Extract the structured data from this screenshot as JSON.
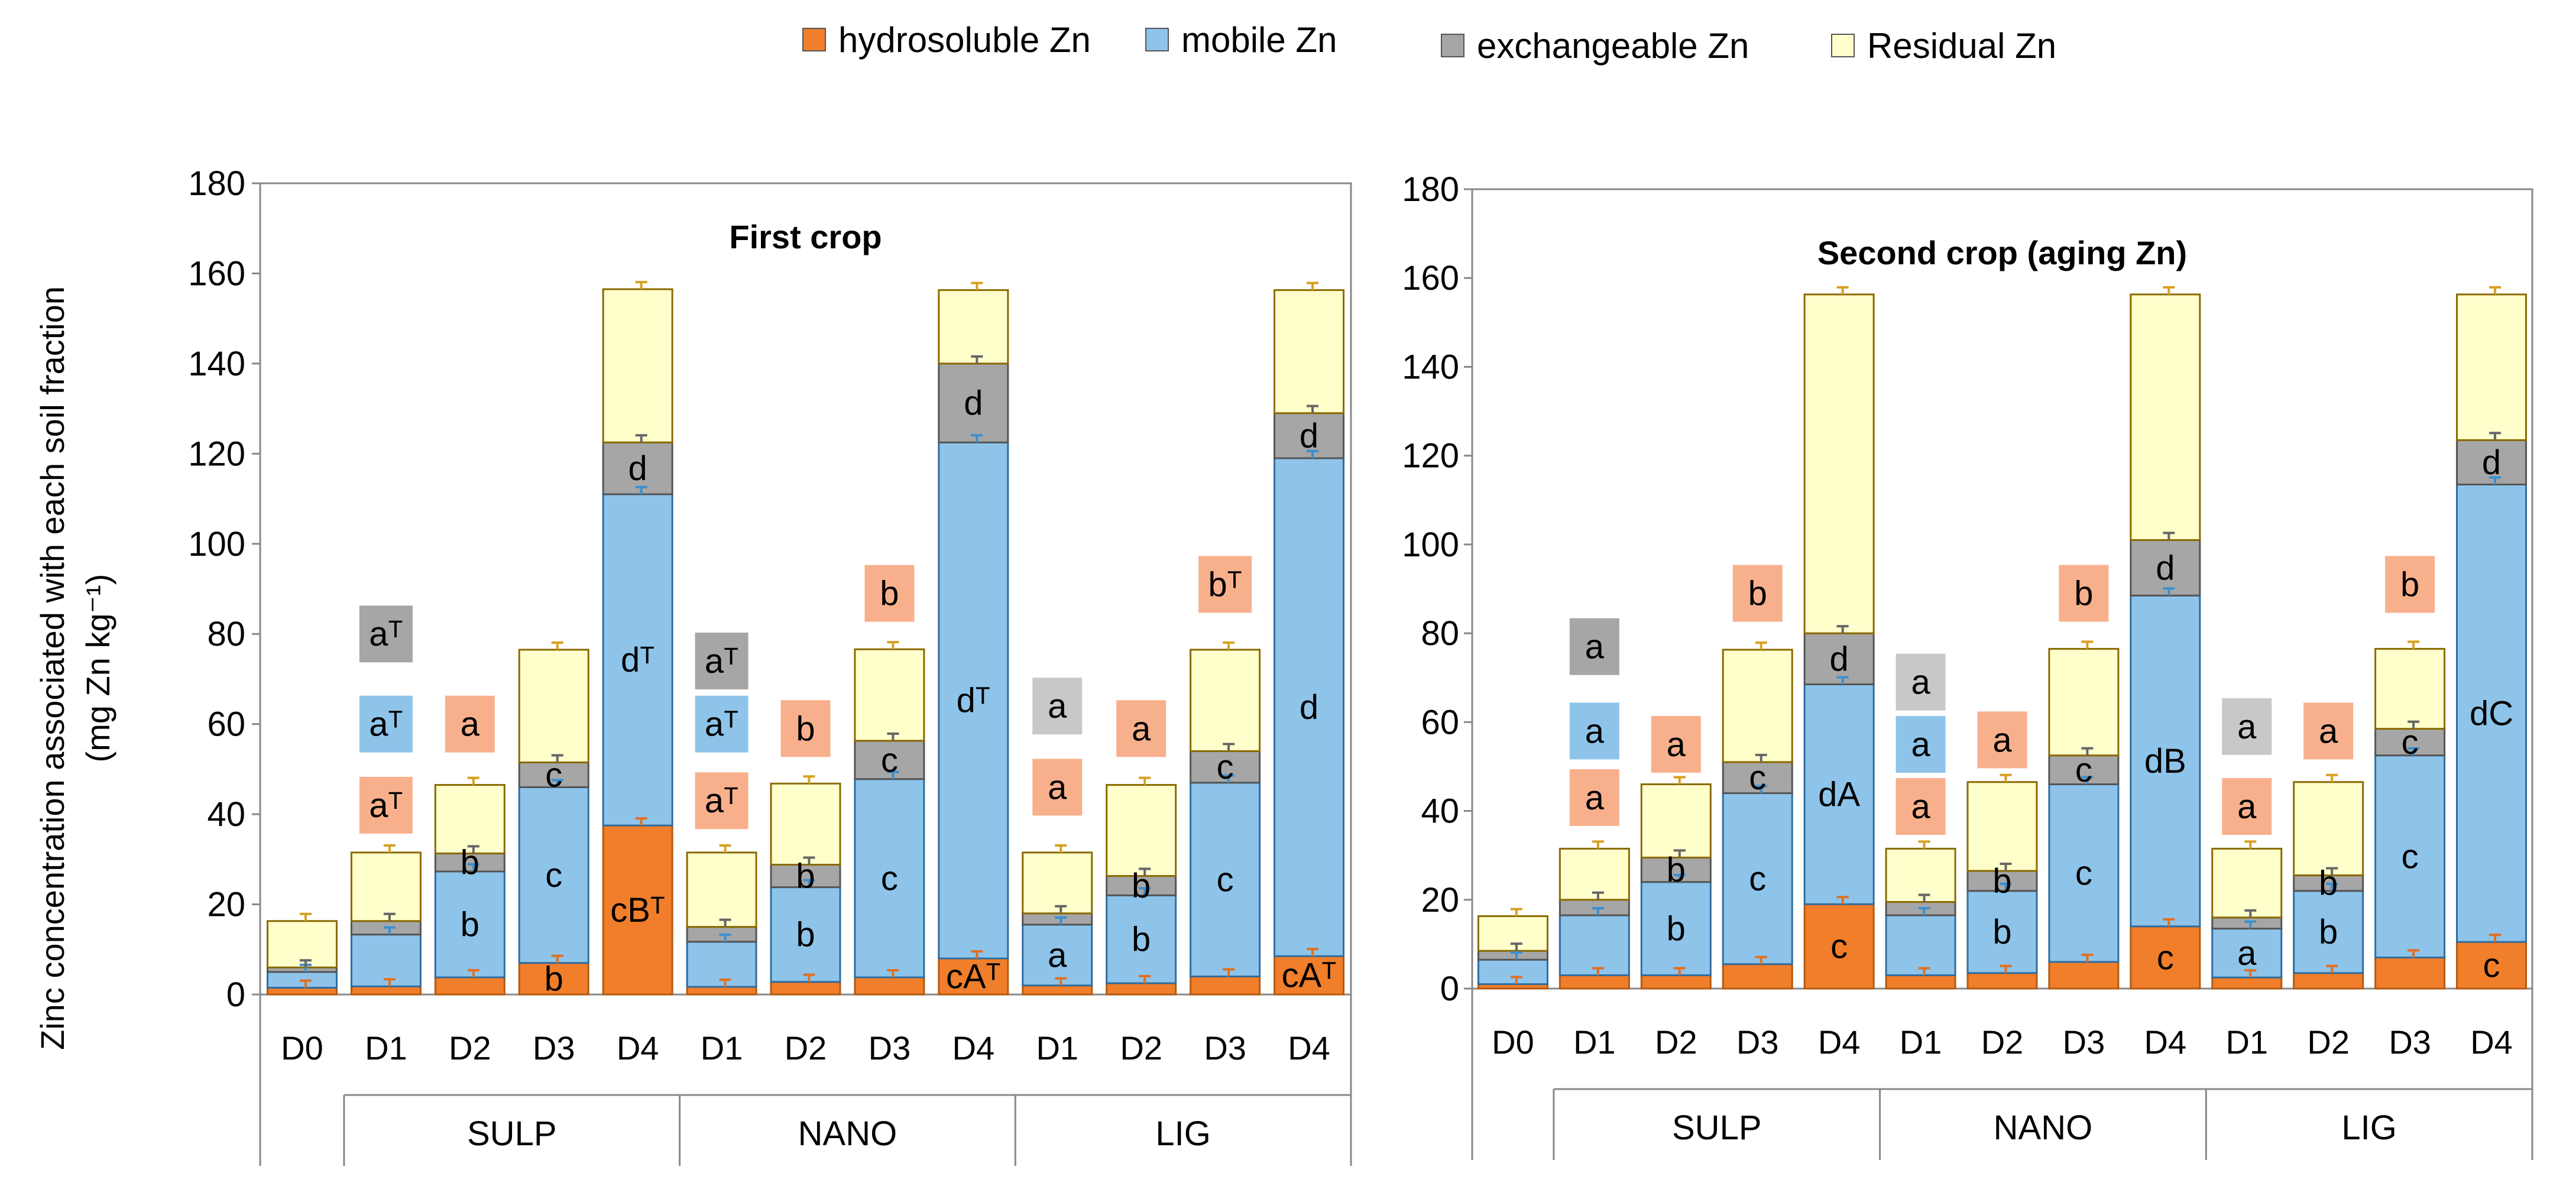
{
  "chart_data": {
    "type": "stacked-bar",
    "ylabel_line1": "Zinc concentration  associated with each soil fraction",
    "ylabel_line2": "(mg Zn kg⁻¹)",
    "ylim": [
      0,
      180
    ],
    "yticks": [
      "0",
      "20",
      "40",
      "60",
      "80",
      "100",
      "120",
      "140",
      "160",
      "180"
    ],
    "legend": [
      {
        "key": "hydro",
        "label": "hydrosoluble Zn",
        "color": "#F07E2A"
      },
      {
        "key": "mobile",
        "label": "mobile  Zn",
        "color": "#8EC4EA"
      },
      {
        "key": "exch",
        "label": "exchangeable Zn",
        "color": "#A6A6A6"
      },
      {
        "key": "resid",
        "label": "Residual Zn",
        "color": "#FFFFCC"
      }
    ],
    "annotation_colors": {
      "hydro": "#F8B08C",
      "mobile": "#8EC4EA",
      "exch": "#A6A6A6",
      "exch_light": "#C8C8C8"
    },
    "groups": [
      "SULP",
      "NANO",
      "LIG"
    ],
    "panels": [
      {
        "title": "First crop",
        "categories": [
          "D0",
          "D1",
          "D2",
          "D3",
          "D4",
          "D1",
          "D2",
          "D3",
          "D4",
          "D1",
          "D2",
          "D3",
          "D4"
        ],
        "hydro": [
          1.5,
          1.8,
          3.8,
          7.0,
          37.5,
          1.7,
          2.8,
          3.8,
          8.0,
          2.0,
          2.5,
          4.0,
          8.5
        ],
        "mobile": [
          3.5,
          11.5,
          23.5,
          39.0,
          73.5,
          10.0,
          21.0,
          44.0,
          114.5,
          13.5,
          19.5,
          43.0,
          110.5
        ],
        "exch": [
          1.0,
          3.0,
          4.0,
          5.5,
          11.5,
          3.3,
          5.0,
          8.5,
          17.5,
          2.5,
          4.3,
          7.0,
          10.0
        ],
        "resid": [
          10.3,
          15.2,
          15.2,
          25.0,
          34.0,
          16.5,
          18.0,
          20.3,
          16.3,
          13.5,
          20.2,
          22.5,
          27.3
        ],
        "seg_labels": [
          {
            "bar": 2,
            "seg": "hydro",
            "text": ""
          },
          {
            "bar": 2,
            "seg": "mobile",
            "text": "b"
          },
          {
            "bar": 2,
            "seg": "exch",
            "text": "b"
          },
          {
            "bar": 3,
            "seg": "hydro",
            "text": "b"
          },
          {
            "bar": 3,
            "seg": "mobile",
            "text": "c"
          },
          {
            "bar": 3,
            "seg": "exch",
            "text": "c"
          },
          {
            "bar": 4,
            "seg": "hydro",
            "text": "cBᵀ"
          },
          {
            "bar": 4,
            "seg": "mobile",
            "text": "dᵀ"
          },
          {
            "bar": 4,
            "seg": "exch",
            "text": "d"
          },
          {
            "bar": 6,
            "seg": "mobile",
            "text": "b"
          },
          {
            "bar": 6,
            "seg": "exch",
            "text": "b"
          },
          {
            "bar": 7,
            "seg": "mobile",
            "text": "c"
          },
          {
            "bar": 7,
            "seg": "exch",
            "text": "c"
          },
          {
            "bar": 8,
            "seg": "hydro",
            "text": "cAᵀ"
          },
          {
            "bar": 8,
            "seg": "mobile",
            "text": "dᵀ"
          },
          {
            "bar": 8,
            "seg": "exch",
            "text": "d"
          },
          {
            "bar": 9,
            "seg": "mobile",
            "text": "a"
          },
          {
            "bar": 10,
            "seg": "mobile",
            "text": "b"
          },
          {
            "bar": 10,
            "seg": "exch",
            "text": "b"
          },
          {
            "bar": 11,
            "seg": "mobile",
            "text": "c"
          },
          {
            "bar": 11,
            "seg": "exch",
            "text": "c"
          },
          {
            "bar": 12,
            "seg": "hydro",
            "text": "cAᵀ"
          },
          {
            "bar": 12,
            "seg": "mobile",
            "text": "d"
          },
          {
            "bar": 12,
            "seg": "exch",
            "text": "d"
          }
        ],
        "annotations": [
          {
            "bar": 1,
            "y": 80,
            "color": "exch",
            "text": "aᵀ"
          },
          {
            "bar": 1,
            "y": 60,
            "color": "mobile",
            "text": "aᵀ"
          },
          {
            "bar": 1,
            "y": 42,
            "color": "hydro",
            "text": "aᵀ"
          },
          {
            "bar": 2,
            "y": 60,
            "color": "hydro",
            "text": "a"
          },
          {
            "bar": 5,
            "y": 74,
            "color": "exch",
            "text": "aᵀ"
          },
          {
            "bar": 5,
            "y": 60,
            "color": "mobile",
            "text": "aᵀ"
          },
          {
            "bar": 5,
            "y": 43,
            "color": "hydro",
            "text": "aᵀ"
          },
          {
            "bar": 6,
            "y": 59,
            "color": "hydro",
            "text": "b"
          },
          {
            "bar": 7,
            "y": 89,
            "color": "hydro",
            "text": "b"
          },
          {
            "bar": 9,
            "y": 64,
            "color": "exch_light",
            "text": "a"
          },
          {
            "bar": 9,
            "y": 46,
            "color": "hydro",
            "text": "a"
          },
          {
            "bar": 10,
            "y": 59,
            "color": "hydro",
            "text": "a"
          },
          {
            "bar": 11,
            "y": 91,
            "color": "hydro",
            "text": "bᵀ"
          }
        ]
      },
      {
        "title": "Second crop (aging Zn)",
        "categories": [
          "D0",
          "D1",
          "D2",
          "D3",
          "D4",
          "D1",
          "D2",
          "D3",
          "D4",
          "D1",
          "D2",
          "D3",
          "D4"
        ],
        "hydro": [
          1.0,
          3.0,
          3.0,
          5.5,
          19.0,
          3.0,
          3.5,
          6.0,
          14.0,
          2.5,
          3.5,
          7.0,
          10.5
        ],
        "mobile": [
          5.5,
          13.5,
          21.0,
          38.5,
          49.5,
          13.5,
          18.5,
          40.0,
          74.5,
          11.0,
          18.5,
          45.5,
          103.0
        ],
        "exch": [
          2.0,
          3.5,
          5.5,
          7.0,
          11.5,
          3.0,
          4.5,
          6.5,
          12.5,
          2.5,
          3.5,
          6.0,
          10.0
        ],
        "resid": [
          7.8,
          11.5,
          16.5,
          25.3,
          76.3,
          12.0,
          20.0,
          24.0,
          55.3,
          15.5,
          21.0,
          18.0,
          32.8
        ],
        "seg_labels": [
          {
            "bar": 2,
            "seg": "mobile",
            "text": "b"
          },
          {
            "bar": 2,
            "seg": "exch",
            "text": "b"
          },
          {
            "bar": 3,
            "seg": "mobile",
            "text": "c"
          },
          {
            "bar": 3,
            "seg": "exch",
            "text": "c"
          },
          {
            "bar": 4,
            "seg": "hydro",
            "text": "c"
          },
          {
            "bar": 4,
            "seg": "mobile",
            "text": "dA"
          },
          {
            "bar": 4,
            "seg": "exch",
            "text": "d"
          },
          {
            "bar": 6,
            "seg": "mobile",
            "text": "b"
          },
          {
            "bar": 6,
            "seg": "exch",
            "text": "b"
          },
          {
            "bar": 7,
            "seg": "mobile",
            "text": "c"
          },
          {
            "bar": 7,
            "seg": "exch",
            "text": "c"
          },
          {
            "bar": 8,
            "seg": "hydro",
            "text": "c"
          },
          {
            "bar": 8,
            "seg": "mobile",
            "text": "dB"
          },
          {
            "bar": 8,
            "seg": "exch",
            "text": "d"
          },
          {
            "bar": 9,
            "seg": "mobile",
            "text": "a"
          },
          {
            "bar": 10,
            "seg": "mobile",
            "text": "b"
          },
          {
            "bar": 10,
            "seg": "exch",
            "text": "b"
          },
          {
            "bar": 11,
            "seg": "mobile",
            "text": "c"
          },
          {
            "bar": 11,
            "seg": "exch",
            "text": "c"
          },
          {
            "bar": 12,
            "seg": "hydro",
            "text": "c"
          },
          {
            "bar": 12,
            "seg": "mobile",
            "text": "dC"
          },
          {
            "bar": 12,
            "seg": "exch",
            "text": "d"
          }
        ],
        "annotations": [
          {
            "bar": 1,
            "y": 77,
            "color": "exch",
            "text": "a"
          },
          {
            "bar": 1,
            "y": 58,
            "color": "mobile",
            "text": "a"
          },
          {
            "bar": 1,
            "y": 43,
            "color": "hydro",
            "text": "a"
          },
          {
            "bar": 2,
            "y": 55,
            "color": "hydro",
            "text": "a"
          },
          {
            "bar": 3,
            "y": 89,
            "color": "hydro",
            "text": "b"
          },
          {
            "bar": 5,
            "y": 69,
            "color": "exch_light",
            "text": "a"
          },
          {
            "bar": 5,
            "y": 55,
            "color": "mobile",
            "text": "a"
          },
          {
            "bar": 5,
            "y": 41,
            "color": "hydro",
            "text": "a"
          },
          {
            "bar": 6,
            "y": 56,
            "color": "hydro",
            "text": "a"
          },
          {
            "bar": 7,
            "y": 89,
            "color": "hydro",
            "text": "b"
          },
          {
            "bar": 9,
            "y": 59,
            "color": "exch_light",
            "text": "a"
          },
          {
            "bar": 9,
            "y": 41,
            "color": "hydro",
            "text": "a"
          },
          {
            "bar": 10,
            "y": 58,
            "color": "hydro",
            "text": "a"
          },
          {
            "bar": 11,
            "y": 91,
            "color": "hydro",
            "text": "b"
          }
        ]
      }
    ]
  }
}
